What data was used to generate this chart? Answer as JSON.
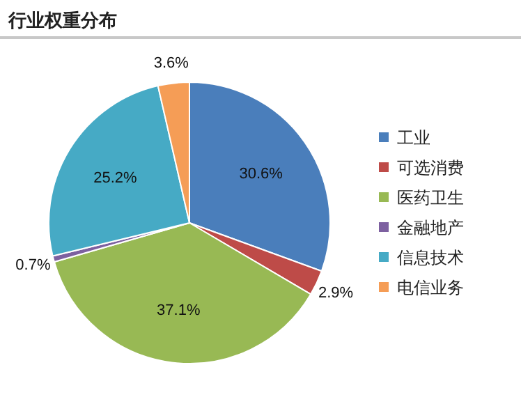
{
  "chart_data": {
    "type": "pie",
    "title": "行业权重分布",
    "categories": [
      "工业",
      "可选消费",
      "医药卫生",
      "金融地产",
      "信息技术",
      "电信业务"
    ],
    "values": [
      30.6,
      2.9,
      37.1,
      0.7,
      25.2,
      3.6
    ],
    "colors": [
      "#4a7ebb",
      "#be4b48",
      "#98b954",
      "#7d60a0",
      "#46aac5",
      "#f59d56"
    ],
    "value_labels": [
      "30.6%",
      "2.9%",
      "37.1%",
      "0.7%",
      "25.2%",
      "3.6%"
    ],
    "legend": "right"
  }
}
